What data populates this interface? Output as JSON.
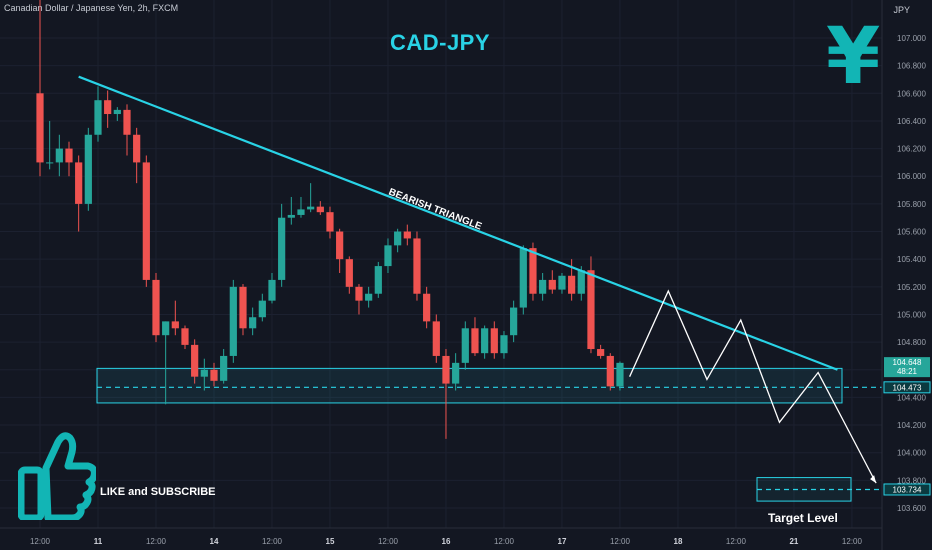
{
  "header": {
    "symbol": "Canadian Dollar / Japanese Yen, 2h, FXCM",
    "title": "CAD-JPY",
    "currency_unit": "JPY",
    "currency_icon": "yen-sign-icon",
    "accent_color": "#29d3e6"
  },
  "annotations": {
    "pattern_label": "BEARISH TRIANGLE",
    "cta_label": "LIKE and SUBSCRIBE",
    "cta_icon": "thumbs-up-icon",
    "target_label": "Target Level"
  },
  "price_badges": {
    "last_price": "104.648",
    "countdown": "48:21",
    "support_level": "104.473",
    "target_level": "103.734"
  },
  "chart_data": {
    "type": "candlestick",
    "y_range": [
      103.55,
      107.3
    ],
    "y_ticks": [
      103.6,
      103.8,
      104.0,
      104.2,
      104.4,
      104.6,
      104.8,
      105.0,
      105.2,
      105.4,
      105.6,
      105.8,
      106.0,
      106.2,
      106.4,
      106.6,
      106.8,
      107.0
    ],
    "x_ticks": [
      {
        "label": "12:00",
        "t": 0
      },
      {
        "label": "11",
        "t": 6
      },
      {
        "label": "12:00",
        "t": 12
      },
      {
        "label": "14",
        "t": 18
      },
      {
        "label": "12:00",
        "t": 24
      },
      {
        "label": "15",
        "t": 30
      },
      {
        "label": "12:00",
        "t": 36
      },
      {
        "label": "16",
        "t": 42
      },
      {
        "label": "12:00",
        "t": 48
      },
      {
        "label": "17",
        "t": 54
      },
      {
        "label": "12:00",
        "t": 60
      },
      {
        "label": "18",
        "t": 66
      },
      {
        "label": "12:00",
        "t": 72
      },
      {
        "label": "21",
        "t": 78
      },
      {
        "label": "12:00",
        "t": 84
      }
    ],
    "candles": [
      {
        "o": 106.6,
        "h": 107.5,
        "l": 106.0,
        "c": 106.1
      },
      {
        "o": 106.1,
        "h": 106.4,
        "l": 106.05,
        "c": 106.1
      },
      {
        "o": 106.1,
        "h": 106.3,
        "l": 106.0,
        "c": 106.2
      },
      {
        "o": 106.2,
        "h": 106.25,
        "l": 106.0,
        "c": 106.1
      },
      {
        "o": 106.1,
        "h": 106.15,
        "l": 105.6,
        "c": 105.8
      },
      {
        "o": 105.8,
        "h": 106.35,
        "l": 105.75,
        "c": 106.3
      },
      {
        "o": 106.3,
        "h": 106.65,
        "l": 106.25,
        "c": 106.55
      },
      {
        "o": 106.55,
        "h": 106.62,
        "l": 106.35,
        "c": 106.45
      },
      {
        "o": 106.45,
        "h": 106.5,
        "l": 106.4,
        "c": 106.48
      },
      {
        "o": 106.48,
        "h": 106.52,
        "l": 106.15,
        "c": 106.3
      },
      {
        "o": 106.3,
        "h": 106.35,
        "l": 105.95,
        "c": 106.1
      },
      {
        "o": 106.1,
        "h": 106.15,
        "l": 105.2,
        "c": 105.25
      },
      {
        "o": 105.25,
        "h": 105.3,
        "l": 104.8,
        "c": 104.85
      },
      {
        "o": 104.85,
        "h": 104.95,
        "l": 104.35,
        "c": 104.95
      },
      {
        "o": 104.95,
        "h": 105.1,
        "l": 104.85,
        "c": 104.9
      },
      {
        "o": 104.9,
        "h": 104.92,
        "l": 104.75,
        "c": 104.78
      },
      {
        "o": 104.78,
        "h": 104.82,
        "l": 104.5,
        "c": 104.55
      },
      {
        "o": 104.55,
        "h": 104.68,
        "l": 104.45,
        "c": 104.6
      },
      {
        "o": 104.6,
        "h": 104.65,
        "l": 104.48,
        "c": 104.52
      },
      {
        "o": 104.52,
        "h": 104.75,
        "l": 104.5,
        "c": 104.7
      },
      {
        "o": 104.7,
        "h": 105.25,
        "l": 104.65,
        "c": 105.2
      },
      {
        "o": 105.2,
        "h": 105.22,
        "l": 104.85,
        "c": 104.9
      },
      {
        "o": 104.9,
        "h": 105.05,
        "l": 104.85,
        "c": 104.98
      },
      {
        "o": 104.98,
        "h": 105.15,
        "l": 104.95,
        "c": 105.1
      },
      {
        "o": 105.1,
        "h": 105.3,
        "l": 105.08,
        "c": 105.25
      },
      {
        "o": 105.25,
        "h": 105.8,
        "l": 105.2,
        "c": 105.7
      },
      {
        "o": 105.7,
        "h": 105.85,
        "l": 105.65,
        "c": 105.72
      },
      {
        "o": 105.72,
        "h": 105.85,
        "l": 105.7,
        "c": 105.76
      },
      {
        "o": 105.76,
        "h": 105.95,
        "l": 105.74,
        "c": 105.78
      },
      {
        "o": 105.78,
        "h": 105.82,
        "l": 105.72,
        "c": 105.74
      },
      {
        "o": 105.74,
        "h": 105.78,
        "l": 105.55,
        "c": 105.6
      },
      {
        "o": 105.6,
        "h": 105.62,
        "l": 105.3,
        "c": 105.4
      },
      {
        "o": 105.4,
        "h": 105.42,
        "l": 105.15,
        "c": 105.2
      },
      {
        "o": 105.2,
        "h": 105.22,
        "l": 105.0,
        "c": 105.1
      },
      {
        "o": 105.1,
        "h": 105.2,
        "l": 105.05,
        "c": 105.15
      },
      {
        "o": 105.15,
        "h": 105.38,
        "l": 105.12,
        "c": 105.35
      },
      {
        "o": 105.35,
        "h": 105.55,
        "l": 105.3,
        "c": 105.5
      },
      {
        "o": 105.5,
        "h": 105.62,
        "l": 105.45,
        "c": 105.6
      },
      {
        "o": 105.6,
        "h": 105.65,
        "l": 105.5,
        "c": 105.55
      },
      {
        "o": 105.55,
        "h": 105.6,
        "l": 105.1,
        "c": 105.15
      },
      {
        "o": 105.15,
        "h": 105.2,
        "l": 104.9,
        "c": 104.95
      },
      {
        "o": 104.95,
        "h": 105.0,
        "l": 104.65,
        "c": 104.7
      },
      {
        "o": 104.7,
        "h": 104.75,
        "l": 104.1,
        "c": 104.5
      },
      {
        "o": 104.5,
        "h": 104.72,
        "l": 104.45,
        "c": 104.65
      },
      {
        "o": 104.65,
        "h": 104.95,
        "l": 104.6,
        "c": 104.9
      },
      {
        "o": 104.9,
        "h": 104.98,
        "l": 104.7,
        "c": 104.72
      },
      {
        "o": 104.72,
        "h": 104.92,
        "l": 104.68,
        "c": 104.9
      },
      {
        "o": 104.9,
        "h": 104.95,
        "l": 104.68,
        "c": 104.72
      },
      {
        "o": 104.72,
        "h": 104.88,
        "l": 104.68,
        "c": 104.85
      },
      {
        "o": 104.85,
        "h": 105.1,
        "l": 104.8,
        "c": 105.05
      },
      {
        "o": 105.05,
        "h": 105.5,
        "l": 105.0,
        "c": 105.48
      },
      {
        "o": 105.48,
        "h": 105.52,
        "l": 105.1,
        "c": 105.15
      },
      {
        "o": 105.15,
        "h": 105.3,
        "l": 105.1,
        "c": 105.25
      },
      {
        "o": 105.25,
        "h": 105.32,
        "l": 105.15,
        "c": 105.18
      },
      {
        "o": 105.18,
        "h": 105.3,
        "l": 105.15,
        "c": 105.28
      },
      {
        "o": 105.28,
        "h": 105.4,
        "l": 105.1,
        "c": 105.15
      },
      {
        "o": 105.15,
        "h": 105.35,
        "l": 105.1,
        "c": 105.32
      },
      {
        "o": 105.32,
        "h": 105.42,
        "l": 104.72,
        "c": 104.75
      },
      {
        "o": 104.75,
        "h": 104.78,
        "l": 104.68,
        "c": 104.7
      },
      {
        "o": 104.7,
        "h": 104.72,
        "l": 104.45,
        "c": 104.48
      },
      {
        "o": 104.48,
        "h": 104.66,
        "l": 104.45,
        "c": 104.65
      }
    ],
    "trendline": [
      {
        "t": 4,
        "p": 106.72
      },
      {
        "t": 82.5,
        "p": 104.6
      }
    ],
    "support_zone": [
      104.36,
      104.61
    ],
    "support_level": 104.473,
    "projection_path": [
      {
        "t": 61,
        "p": 104.55
      },
      {
        "t": 65,
        "p": 105.17
      },
      {
        "t": 69,
        "p": 104.53
      },
      {
        "t": 72.5,
        "p": 104.96
      },
      {
        "t": 76.5,
        "p": 104.22
      },
      {
        "t": 80.5,
        "p": 104.58
      },
      {
        "t": 86.5,
        "p": 103.78
      }
    ],
    "target_zone": [
      103.65,
      103.82
    ],
    "target_level": 103.734,
    "colors": {
      "up": "#26a69a",
      "down": "#ef5350",
      "trendline": "#29d3e6",
      "zone": "#29d3e6",
      "projection": "#ffffff"
    }
  }
}
